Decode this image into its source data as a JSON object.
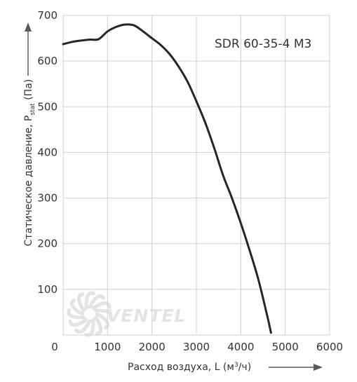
{
  "chart_data": {
    "type": "line",
    "title": "",
    "model_label": "SDR 60-35-4 M3",
    "xlabel": "Расход воздуха, L (м³/ч)",
    "ylabel": "Статическое давление, Pstat (Па)",
    "ylabel_parts": [
      "Статическое давление, P",
      "stat",
      " (Па)"
    ],
    "xlabel_parts": [
      "Расход воздуха, L (м",
      "3",
      "/ч)"
    ],
    "xlim": [
      0,
      6000
    ],
    "ylim": [
      0,
      700
    ],
    "x_ticks": [
      0,
      1000,
      2000,
      3000,
      4000,
      5000,
      6000
    ],
    "y_ticks": [
      0,
      100,
      200,
      300,
      400,
      500,
      600,
      700
    ],
    "grid": true,
    "watermark": "VENTEL",
    "series": [
      {
        "color": "#262626",
        "x": [
          0,
          200,
          400,
          600,
          800,
          1000,
          1200,
          1400,
          1600,
          1800,
          2000,
          2200,
          2400,
          2600,
          2800,
          3000,
          3200,
          3400,
          3600,
          3800,
          4000,
          4200,
          4400,
          4600,
          4680
        ],
        "y": [
          637,
          642,
          645,
          647,
          648,
          665,
          675,
          680,
          678,
          665,
          650,
          635,
          615,
          588,
          555,
          512,
          465,
          410,
          350,
          300,
          245,
          185,
          120,
          40,
          5
        ]
      }
    ]
  },
  "colors": {
    "grid": "#d0d0d0",
    "curve": "#262626",
    "arrow": "#5a5a5a",
    "watermark": "#e3e3e3"
  }
}
